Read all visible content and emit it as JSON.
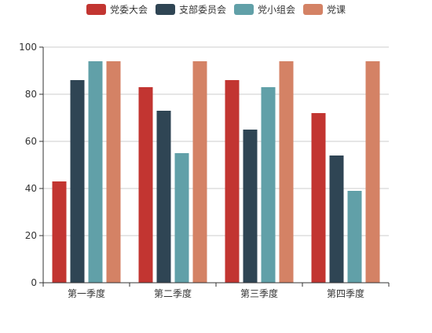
{
  "chart_data": {
    "type": "bar",
    "title": "",
    "xlabel": "",
    "ylabel": "",
    "categories": [
      "第一季度",
      "第二季度",
      "第三季度",
      "第四季度"
    ],
    "series": [
      {
        "name": "党委大会",
        "color": "#c23531",
        "values": [
          43,
          83,
          86,
          72
        ]
      },
      {
        "name": "支部委员会",
        "color": "#2f4554",
        "values": [
          86,
          73,
          65,
          54
        ]
      },
      {
        "name": "党小组会",
        "color": "#61a0a8",
        "values": [
          94,
          55,
          83,
          39
        ]
      },
      {
        "name": "党课",
        "color": "#d48265",
        "values": [
          94,
          94,
          94,
          94
        ]
      }
    ],
    "ylim": [
      0,
      100
    ],
    "yticks": [
      0,
      20,
      40,
      60,
      80,
      100
    ],
    "grid": true,
    "legend_position": "top-center",
    "colors": {
      "axis": "#333333",
      "grid": "#cccccc",
      "text": "#333333"
    }
  }
}
